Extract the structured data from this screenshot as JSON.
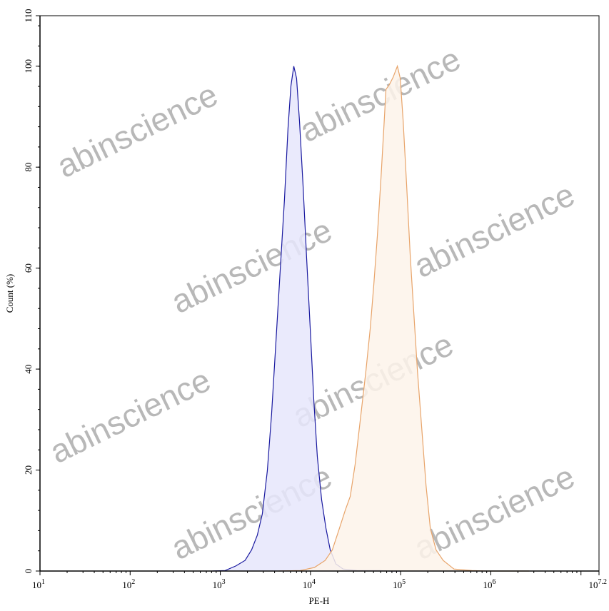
{
  "watermark": "abinscience",
  "chart_data": {
    "type": "area",
    "title": "",
    "xlabel": "PE-H",
    "ylabel": "Count (%)",
    "xscale": "log",
    "xlim": [
      10,
      15848932
    ],
    "ylim": [
      0,
      110
    ],
    "x_ticks": [
      {
        "base": "10",
        "exp": "1"
      },
      {
        "base": "10",
        "exp": "2"
      },
      {
        "base": "10",
        "exp": "3"
      },
      {
        "base": "10",
        "exp": "4"
      },
      {
        "base": "10",
        "exp": "5"
      },
      {
        "base": "10",
        "exp": "6"
      },
      {
        "base": "10",
        "exp": "7.2"
      }
    ],
    "y_ticks": [
      "0",
      "20",
      "40",
      "60",
      "80",
      "100",
      "110"
    ],
    "grid": false,
    "legend": "none",
    "series": [
      {
        "color": "#1a1aa0",
        "fill": "#e6e6fb",
        "x": [
          815,
          1132,
          1486,
          1885,
          2223,
          2570,
          2924,
          3322,
          3706,
          4134,
          4613,
          5143,
          5636,
          6067,
          6531,
          7015,
          7551,
          8278,
          9057,
          9931,
          10890,
          11912,
          13300,
          14830,
          16560,
          19150,
          23000,
          33110,
          57280,
          75340,
          99000
        ],
        "y": [
          0,
          0.1,
          1.0,
          2.1,
          4.2,
          7.1,
          11.3,
          19.8,
          31.1,
          45.2,
          59.4,
          73.5,
          87.7,
          96.1,
          100,
          97.6,
          89.1,
          76.3,
          62.2,
          48.1,
          33.9,
          22.6,
          14.1,
          8.5,
          4.2,
          1.4,
          0.4,
          0.1,
          0.1,
          0,
          0
        ]
      },
      {
        "color": "#e8a46a",
        "fill": "#fdf3ea",
        "x": [
          4446,
          7691,
          11070,
          14560,
          17490,
          20990,
          24270,
          27600,
          31340,
          36300,
          41210,
          46010,
          50370,
          55200,
          60500,
          65100,
          68760,
          75340,
          82550,
          92050,
          99000,
          106600,
          116700,
          127900,
          140200,
          153500,
          171300,
          191000,
          213300,
          246800,
          296300,
          389600,
          615300,
          885300,
          1276000,
          2649000
        ],
        "y": [
          0,
          0.1,
          0.7,
          2.1,
          4.2,
          8.5,
          12.0,
          14.8,
          21.2,
          31.1,
          39.6,
          48.1,
          56.6,
          66.5,
          77.8,
          87.7,
          95.4,
          96.4,
          97.8,
          100,
          97.6,
          89.1,
          76.3,
          62.2,
          50.9,
          39.6,
          28.3,
          17.0,
          8.5,
          4.2,
          2.1,
          0.4,
          0.1,
          0,
          0,
          0
        ]
      }
    ]
  }
}
